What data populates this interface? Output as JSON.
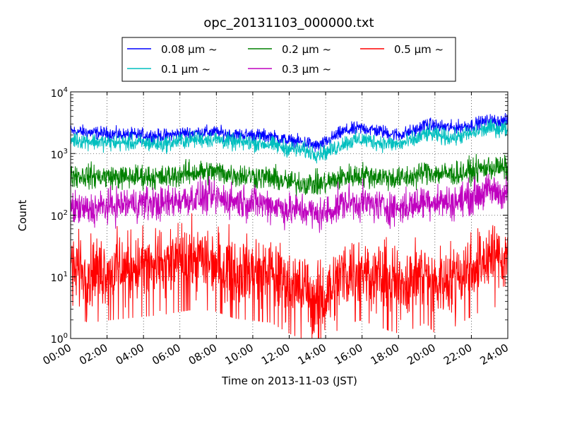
{
  "chart_data": {
    "type": "line",
    "title": "opc_20131103_000000.txt",
    "xlabel": "Time on 2013-11-03 (JST)",
    "ylabel": "Count",
    "x_ticks": [
      "00:00",
      "02:00",
      "04:00",
      "06:00",
      "08:00",
      "10:00",
      "12:00",
      "14:00",
      "16:00",
      "18:00",
      "20:00",
      "22:00",
      "24:00"
    ],
    "xlim_hours": [
      0,
      24
    ],
    "y_scale": "log",
    "ylim": [
      1,
      10000
    ],
    "y_ticks": [
      {
        "base": "10",
        "exp": "0"
      },
      {
        "base": "10",
        "exp": "1"
      },
      {
        "base": "10",
        "exp": "2"
      },
      {
        "base": "10",
        "exp": "3"
      },
      {
        "base": "10",
        "exp": "4"
      }
    ],
    "grid": true,
    "legend_position": "top",
    "series": [
      {
        "name": "0.08 μm ~",
        "color": "#0000ff",
        "x": [
          0,
          1,
          2,
          3,
          4,
          5,
          6,
          7,
          8,
          9,
          10,
          11,
          12,
          13,
          13.5,
          14,
          14.5,
          15,
          16,
          17,
          18,
          19,
          19.5,
          20,
          21,
          22,
          23,
          24
        ],
        "y": [
          2300,
          2200,
          2100,
          2000,
          2000,
          1900,
          2100,
          2200,
          2200,
          2000,
          2000,
          1900,
          1600,
          1500,
          1300,
          1500,
          1900,
          2300,
          2600,
          2300,
          2000,
          2400,
          3000,
          2800,
          2600,
          2900,
          3400,
          3300
        ]
      },
      {
        "name": "0.1 μm ~",
        "color": "#00bfbf",
        "x": [
          0,
          1,
          2,
          3,
          4,
          5,
          6,
          7,
          8,
          9,
          10,
          11,
          12,
          13,
          13.5,
          14,
          14.5,
          15,
          16,
          17,
          18,
          19,
          19.5,
          20,
          21,
          22,
          23,
          24
        ],
        "y": [
          1700,
          1600,
          1500,
          1500,
          1500,
          1400,
          1600,
          1700,
          1700,
          1500,
          1500,
          1400,
          1200,
          1100,
          1000,
          1050,
          1200,
          1500,
          1700,
          1500,
          1400,
          1700,
          2100,
          2000,
          1800,
          2100,
          2600,
          2500
        ]
      },
      {
        "name": "0.2 μm ~",
        "color": "#008000",
        "x": [
          0,
          1,
          2,
          3,
          4,
          5,
          6,
          7,
          8,
          9,
          10,
          11,
          12,
          13,
          13.5,
          14,
          14.5,
          15,
          16,
          17,
          18,
          19,
          19.5,
          20,
          21,
          22,
          23,
          24
        ],
        "y": [
          450,
          430,
          420,
          410,
          430,
          400,
          460,
          500,
          500,
          450,
          430,
          400,
          340,
          330,
          320,
          330,
          370,
          420,
          450,
          420,
          390,
          430,
          520,
          480,
          460,
          520,
          600,
          570
        ]
      },
      {
        "name": "0.3 μm ~",
        "color": "#bf00bf",
        "x": [
          0,
          1,
          2,
          3,
          4,
          5,
          6,
          7,
          8,
          9,
          10,
          11,
          12,
          13,
          13.5,
          14,
          14.5,
          15,
          16,
          17,
          18,
          19,
          19.5,
          20,
          21,
          22,
          23,
          24
        ],
        "y": [
          130,
          120,
          140,
          150,
          160,
          150,
          180,
          190,
          190,
          170,
          160,
          150,
          120,
          120,
          100,
          110,
          130,
          160,
          160,
          140,
          130,
          150,
          180,
          170,
          160,
          200,
          250,
          220
        ]
      },
      {
        "name": "0.5 μm ~",
        "color": "#ff0000",
        "x": [
          0,
          1,
          2,
          3,
          4,
          5,
          6,
          7,
          8,
          9,
          10,
          11,
          12,
          13,
          13.5,
          14,
          14.5,
          15,
          16,
          17,
          18,
          19,
          19.5,
          20,
          21,
          22,
          23,
          24
        ],
        "y": [
          15,
          12,
          13,
          14,
          15,
          16,
          18,
          20,
          18,
          14,
          13,
          12,
          8,
          6,
          4,
          5,
          8,
          12,
          13,
          10,
          8,
          10,
          12,
          8,
          10,
          15,
          22,
          20
        ]
      }
    ]
  }
}
